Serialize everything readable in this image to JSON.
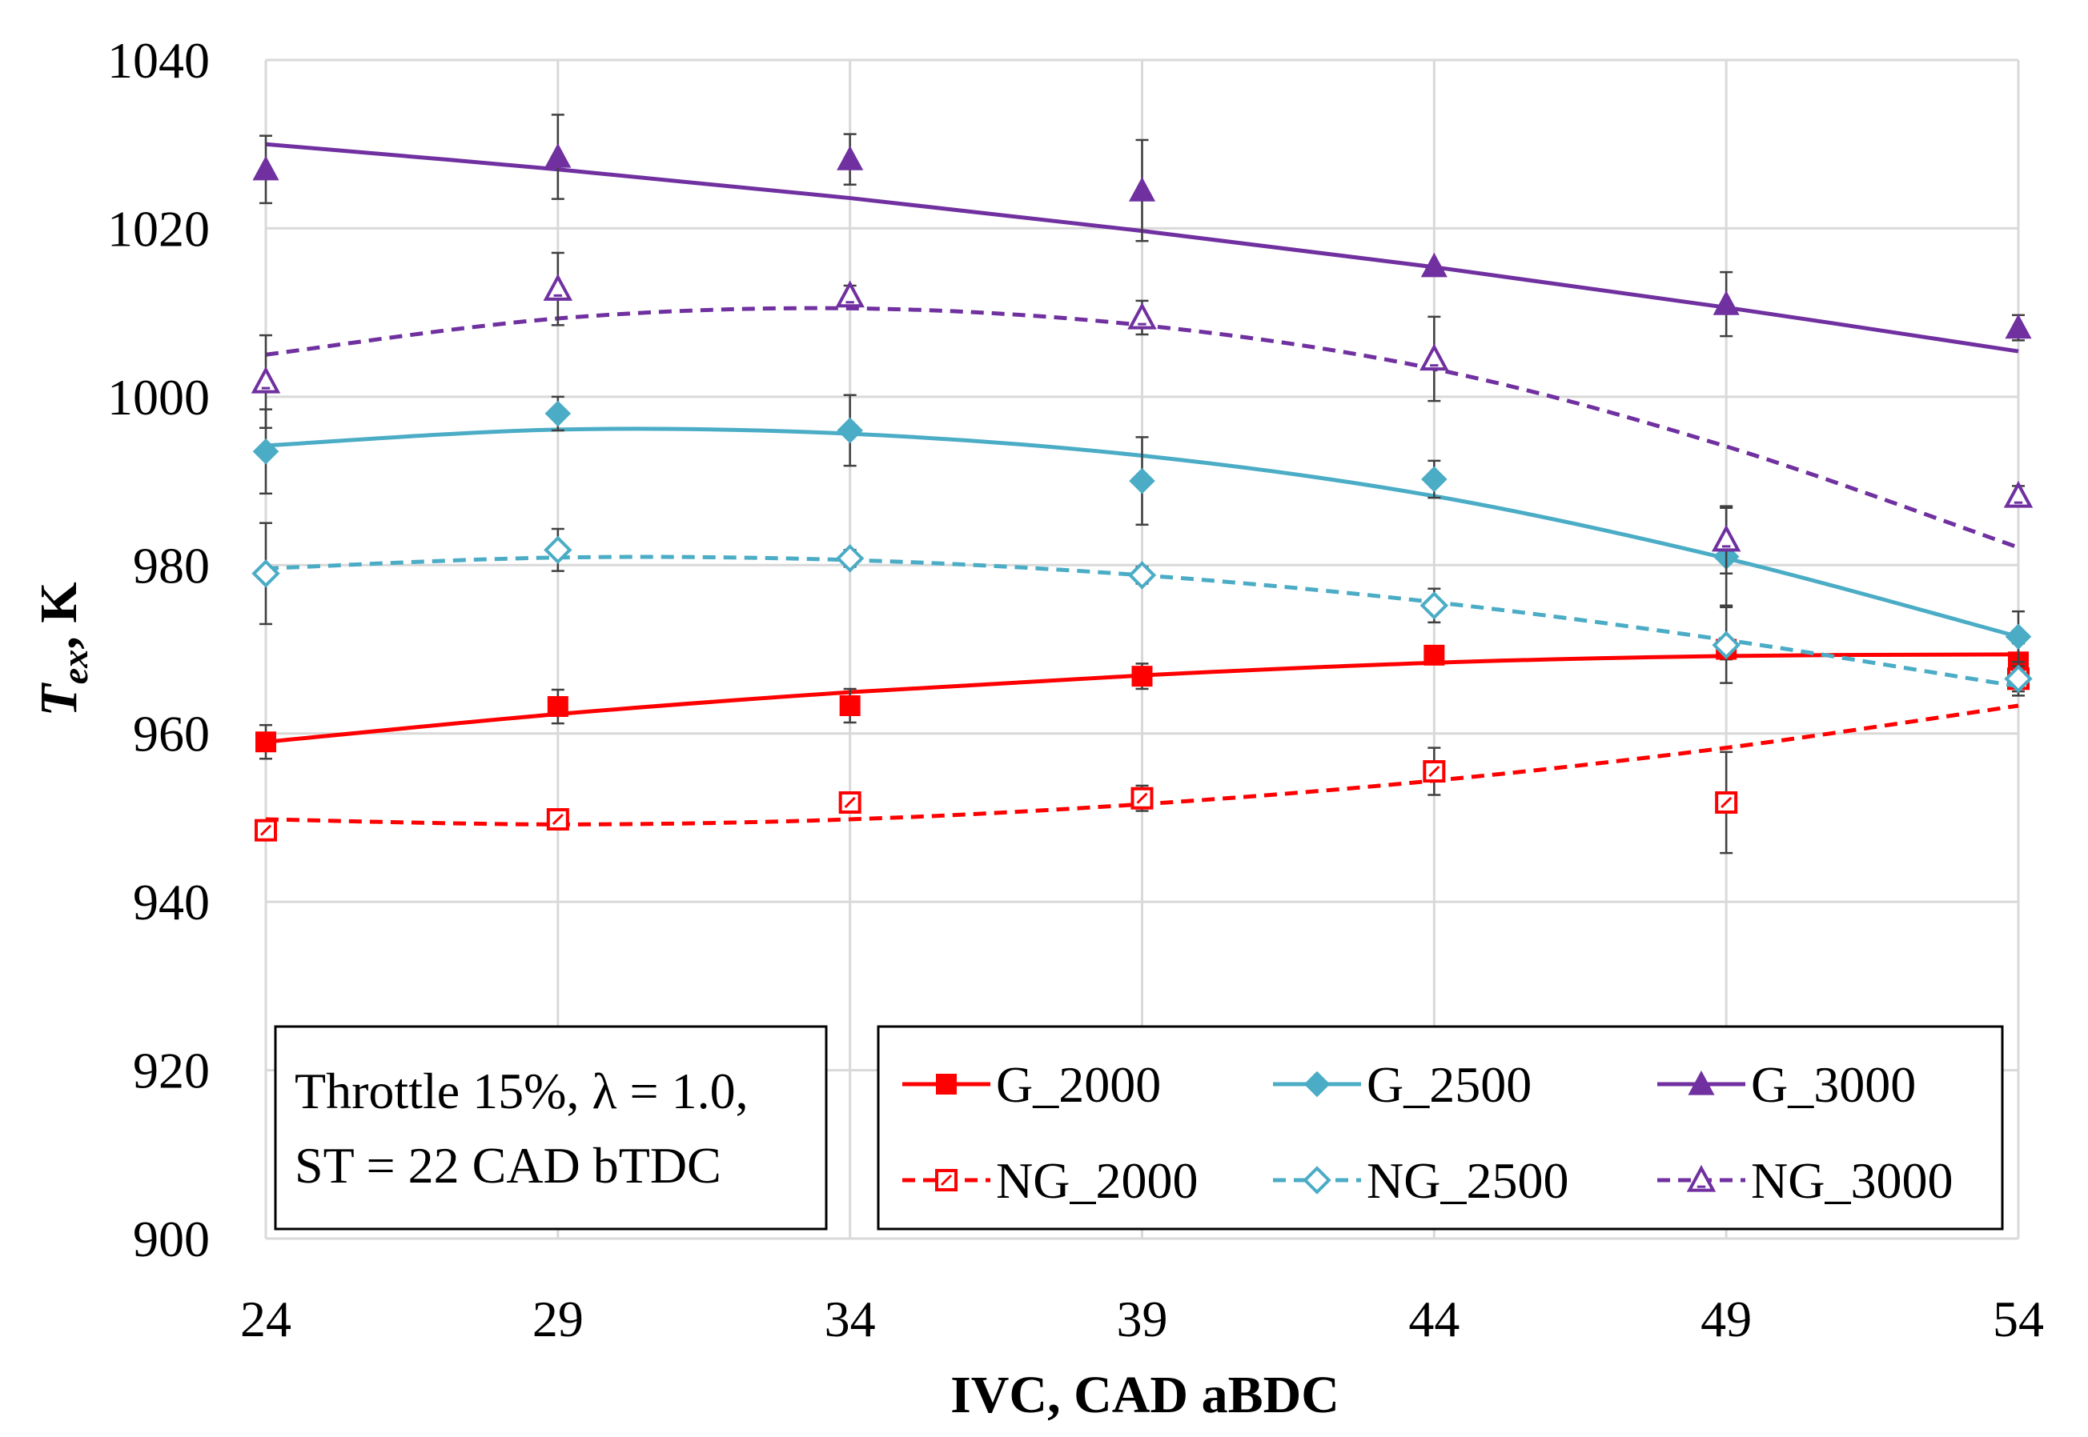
{
  "chart_data": {
    "type": "scatter",
    "xlabel": "IVC, CAD aBDC",
    "ylabel": {
      "main": "T",
      "sub": "ex",
      "suffix": ", K"
    },
    "xlim": [
      24,
      54
    ],
    "ylim": [
      900,
      1040
    ],
    "xticks": [
      24,
      29,
      34,
      39,
      44,
      49,
      54
    ],
    "yticks": [
      900,
      920,
      940,
      960,
      980,
      1000,
      1020,
      1040
    ],
    "grid": true,
    "legend_position": "bottom-right",
    "legend_columns": 3,
    "annotation": {
      "line1": "Throttle 15%, λ = 1.0,",
      "line2": "ST = 22 CAD bTDC"
    },
    "series": [
      {
        "name": "G_2000",
        "color": "#ff0000",
        "marker": "square",
        "filled": true,
        "dashed": false,
        "x": [
          24,
          29,
          34,
          39,
          44,
          49,
          54
        ],
        "values": [
          959.0,
          963.2,
          963.3,
          966.8,
          969.3,
          970.0,
          968.5
        ],
        "errors": [
          2.0,
          2.0,
          2.0,
          1.5,
          1.0,
          1.2,
          2.2
        ],
        "fit": [
          [
            24,
            959.0
          ],
          [
            29,
            962.3
          ],
          [
            34,
            964.9
          ],
          [
            39,
            966.9
          ],
          [
            44,
            968.4
          ],
          [
            49,
            969.2
          ],
          [
            54,
            969.4
          ]
        ]
      },
      {
        "name": "G_2500",
        "color": "#4bacc6",
        "marker": "diamond",
        "filled": true,
        "dashed": false,
        "x": [
          24,
          29,
          34,
          39,
          44,
          49,
          54
        ],
        "values": [
          993.5,
          998.0,
          996.0,
          990.0,
          990.2,
          981.0,
          971.5
        ],
        "errors": [
          5.0,
          2.0,
          4.2,
          5.2,
          2.2,
          5.8,
          3.0
        ],
        "fit": [
          [
            24,
            994.2
          ],
          [
            29,
            996.1
          ],
          [
            34,
            995.6
          ],
          [
            39,
            993.0
          ],
          [
            44,
            988.2
          ],
          [
            49,
            980.8
          ],
          [
            54,
            971.5
          ]
        ]
      },
      {
        "name": "G_3000",
        "color": "#7030a0",
        "marker": "triangle",
        "filled": true,
        "dashed": false,
        "x": [
          24,
          29,
          34,
          39,
          44,
          49,
          54
        ],
        "values": [
          1027.0,
          1028.5,
          1028.2,
          1024.5,
          1015.5,
          1011.0,
          1008.2
        ],
        "errors": [
          4.0,
          5.0,
          3.0,
          6.0,
          0.0,
          3.8,
          1.5
        ],
        "fit": [
          [
            24,
            1030.0
          ],
          [
            29,
            1027.0
          ],
          [
            34,
            1023.6
          ],
          [
            39,
            1019.7
          ],
          [
            44,
            1015.4
          ],
          [
            49,
            1010.6
          ],
          [
            54,
            1005.4
          ]
        ]
      },
      {
        "name": "NG_2000",
        "color": "#ff0000",
        "marker": "square",
        "filled": false,
        "dashed": true,
        "x": [
          24,
          29,
          34,
          39,
          44,
          49,
          54
        ],
        "values": [
          948.5,
          949.8,
          951.8,
          952.3,
          955.5,
          951.8,
          966.5
        ],
        "errors": [
          1.2,
          1.0,
          1.2,
          1.5,
          2.8,
          6.0,
          1.5
        ],
        "fit": [
          [
            24,
            949.8
          ],
          [
            29,
            949.2
          ],
          [
            34,
            949.8
          ],
          [
            39,
            951.6
          ],
          [
            44,
            954.4
          ],
          [
            49,
            958.3
          ],
          [
            54,
            963.3
          ]
        ]
      },
      {
        "name": "NG_2500",
        "color": "#4bacc6",
        "marker": "diamond",
        "filled": false,
        "dashed": true,
        "x": [
          24,
          29,
          34,
          39,
          44,
          49,
          54
        ],
        "values": [
          979.0,
          981.8,
          980.8,
          978.8,
          975.2,
          970.5,
          966.5
        ],
        "errors": [
          6.0,
          2.5,
          1.0,
          1.0,
          2.0,
          4.5,
          2.0
        ],
        "fit": [
          [
            24,
            979.6
          ],
          [
            29,
            980.9
          ],
          [
            34,
            980.6
          ],
          [
            39,
            978.8
          ],
          [
            44,
            975.6
          ],
          [
            49,
            971.1
          ],
          [
            54,
            965.6
          ]
        ]
      },
      {
        "name": "NG_3000",
        "color": "#7030a0",
        "marker": "triangle",
        "filled": false,
        "dashed": true,
        "x": [
          24,
          29,
          34,
          39,
          44,
          49,
          54
        ],
        "values": [
          1001.8,
          1012.8,
          1012.0,
          1009.4,
          1004.5,
          983.0,
          988.2
        ],
        "errors": [
          5.5,
          4.3,
          1.2,
          2.0,
          5.0,
          4.0,
          1.2
        ],
        "fit": [
          [
            24,
            1005.0
          ],
          [
            29,
            1009.3
          ],
          [
            34,
            1010.5
          ],
          [
            39,
            1008.5
          ],
          [
            44,
            1003.3
          ],
          [
            49,
            994.1
          ],
          [
            54,
            982.1
          ]
        ]
      }
    ]
  }
}
